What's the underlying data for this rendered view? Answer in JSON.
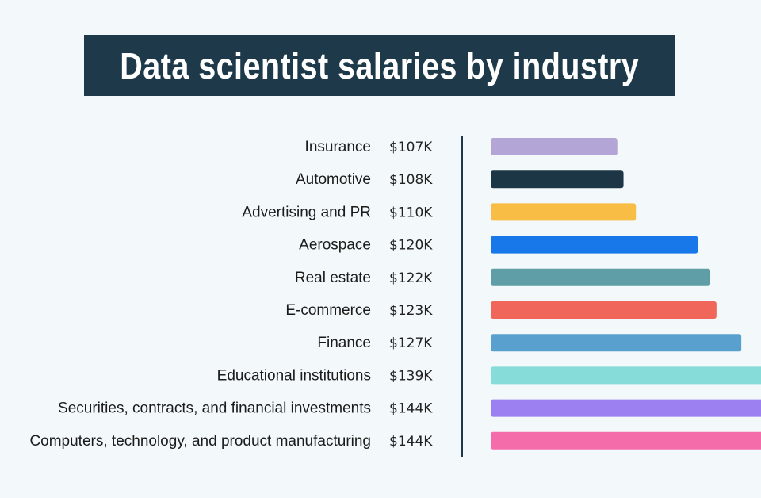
{
  "title": "Data scientist salaries by industry",
  "chart_data": {
    "type": "bar",
    "orientation": "horizontal",
    "title": "Data scientist salaries by industry",
    "categories": [
      "Insurance",
      "Automotive",
      "Advertising and PR",
      "Aerospace",
      "Real estate",
      "E-commerce",
      "Finance",
      "Educational institutions",
      "Securities, contracts, and financial investments",
      "Computers, technology, and product manufacturing"
    ],
    "values": [
      107,
      108,
      110,
      120,
      122,
      123,
      127,
      139,
      144,
      144
    ],
    "value_labels": [
      "$107K",
      "$108K",
      "$110K",
      "$120K",
      "$122K",
      "$123K",
      "$127K",
      "$139K",
      "$144K",
      "$144K"
    ],
    "colors": [
      "#b3a5d6",
      "#1c3645",
      "#f7bd45",
      "#1877e9",
      "#5f9ea6",
      "#f0665a",
      "#5aa0cf",
      "#86dcd8",
      "#9c7ff0",
      "#f56cab"
    ],
    "units": "K USD",
    "grid": false,
    "legend": "none"
  }
}
